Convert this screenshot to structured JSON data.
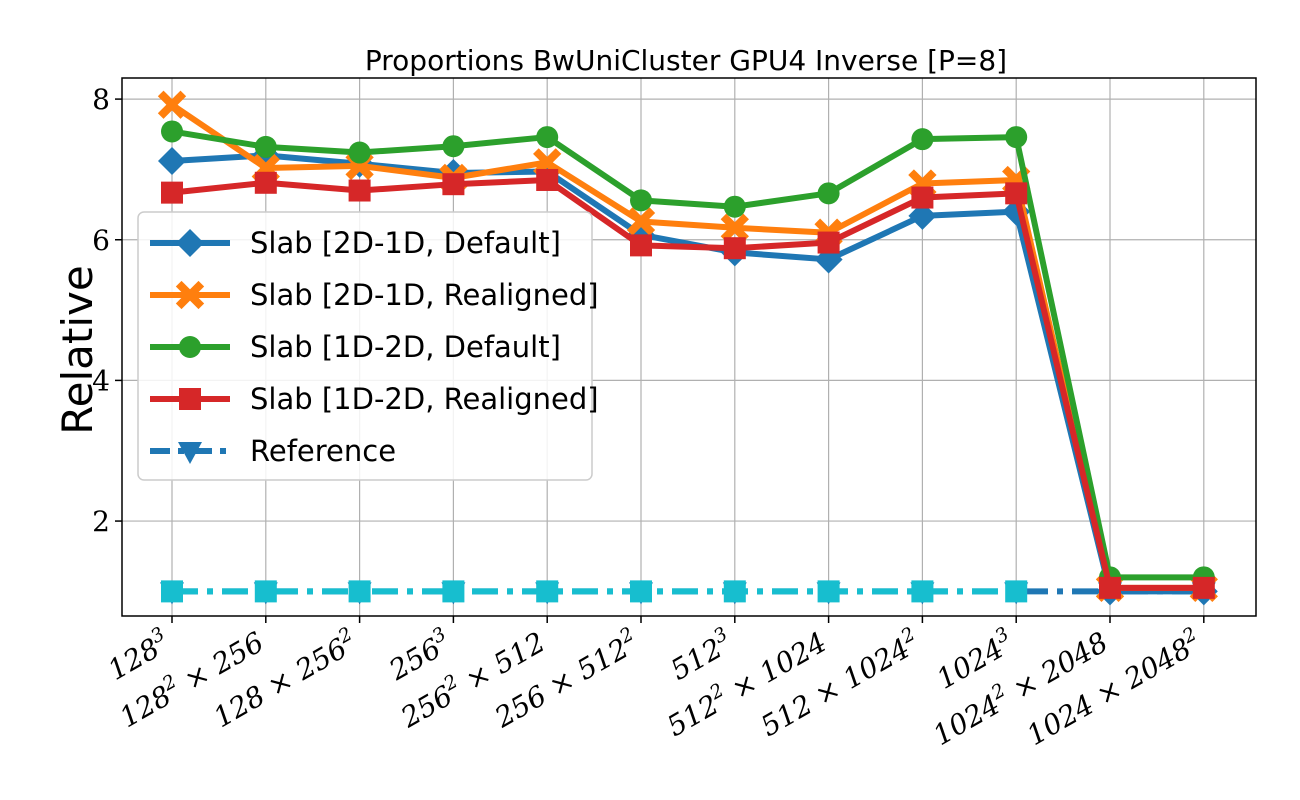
{
  "chart_data": {
    "type": "line",
    "title": "Proportions BwUniCluster GPU4 Inverse [P=8]",
    "xlabel": "",
    "ylabel": "Relative",
    "ylim": [
      0.65,
      8.3
    ],
    "yticks": [
      2,
      4,
      6,
      8
    ],
    "grid": true,
    "legend_position": "center-left",
    "categories": [
      "128^3",
      "128^2 × 256",
      "128 × 256^2",
      "256^3",
      "256^2 × 512",
      "256 × 512^2",
      "512^3",
      "512^2 × 1024",
      "512 × 1024^2",
      "1024^3",
      "1024^2 × 2048",
      "1024 × 2048^2"
    ],
    "category_ticks": [
      {
        "base": "128",
        "sup": "3",
        "rest": ""
      },
      {
        "base": "128",
        "sup": "2",
        "rest": " × 256"
      },
      {
        "base": "128 × 256",
        "sup": "2",
        "rest": ""
      },
      {
        "base": "256",
        "sup": "3",
        "rest": ""
      },
      {
        "base": "256",
        "sup": "2",
        "rest": " × 512"
      },
      {
        "base": "256 × 512",
        "sup": "2",
        "rest": ""
      },
      {
        "base": "512",
        "sup": "3",
        "rest": ""
      },
      {
        "base": "512",
        "sup": "2",
        "rest": " × 1024"
      },
      {
        "base": "512 × 1024",
        "sup": "2",
        "rest": ""
      },
      {
        "base": "1024",
        "sup": "3",
        "rest": ""
      },
      {
        "base": "1024",
        "sup": "2",
        "rest": " × 2048"
      },
      {
        "base": "1024 × 2048",
        "sup": "2",
        "rest": ""
      }
    ],
    "series": [
      {
        "name": "Slab [2D-1D, Default]",
        "color": "#1f77b4",
        "marker": "diamond",
        "line": "solid",
        "values": [
          7.12,
          7.2,
          7.08,
          6.95,
          6.97,
          6.07,
          5.82,
          5.72,
          6.34,
          6.4,
          1.0,
          1.0
        ]
      },
      {
        "name": "Slab [2D-1D, Realigned]",
        "color": "#ff7f0e",
        "marker": "x",
        "line": "solid",
        "values": [
          7.92,
          7.02,
          7.05,
          6.88,
          7.1,
          6.26,
          6.17,
          6.1,
          6.8,
          6.85,
          1.05,
          1.05
        ]
      },
      {
        "name": "Slab [1D-2D, Default]",
        "color": "#2ca02c",
        "marker": "circle",
        "line": "solid",
        "values": [
          7.54,
          7.32,
          7.24,
          7.33,
          7.46,
          6.56,
          6.47,
          6.66,
          7.43,
          7.46,
          1.2,
          1.2
        ]
      },
      {
        "name": "Slab [1D-2D, Realigned]",
        "color": "#d62728",
        "marker": "square",
        "line": "solid",
        "values": [
          6.67,
          6.81,
          6.7,
          6.79,
          6.85,
          5.92,
          5.88,
          5.96,
          6.6,
          6.66,
          1.05,
          1.05
        ]
      },
      {
        "name": "Reference",
        "color": "#1f77b4",
        "marker": "triangle-down",
        "line": "dashdot",
        "values": [
          1.0,
          1.0,
          1.0,
          1.0,
          1.0,
          1.0,
          1.0,
          1.0,
          1.0,
          1.0,
          1.0,
          1.0
        ]
      },
      {
        "name": "",
        "color": "#17becf",
        "marker": "square",
        "line": "dashdot",
        "values": [
          1.0,
          1.0,
          1.0,
          1.0,
          1.0,
          1.0,
          1.0,
          1.0,
          1.0,
          1.0,
          null,
          null
        ]
      }
    ],
    "legend_entries": [
      0,
      1,
      2,
      3,
      4
    ]
  }
}
